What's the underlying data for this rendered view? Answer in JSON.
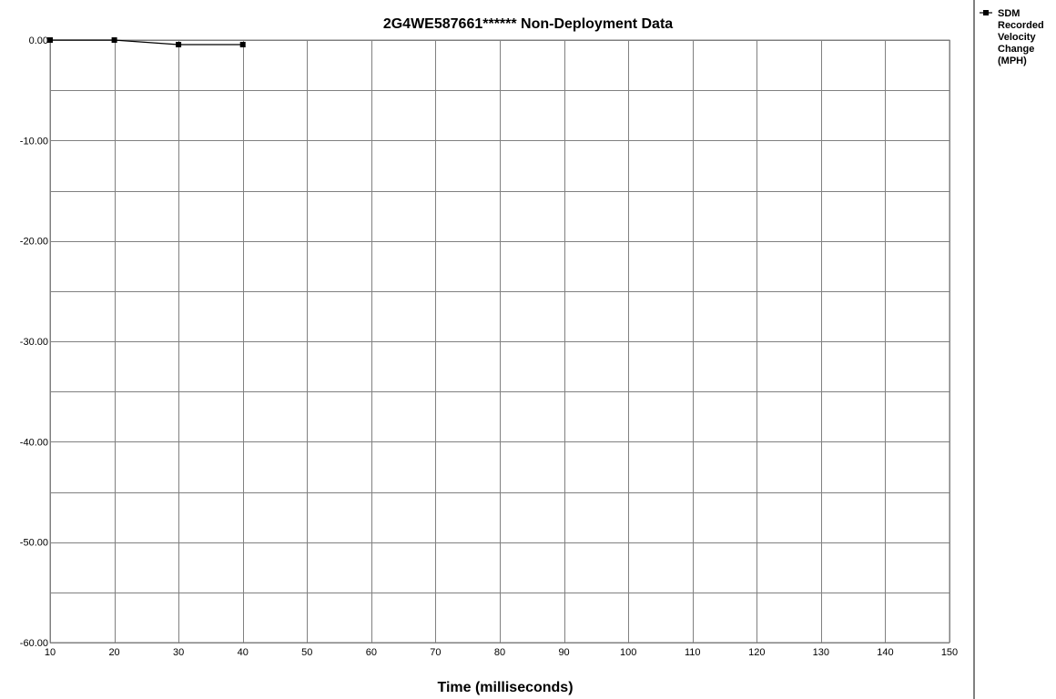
{
  "chart_data": {
    "type": "line",
    "title": "2G4WE587661******  Non-Deployment Data",
    "xlabel": "Time (milliseconds)",
    "ylabel": "",
    "x": [
      10,
      20,
      30,
      40
    ],
    "series": [
      {
        "name": "SDM Recorded Velocity Change (MPH)",
        "legend_lines": [
          "SDM",
          "Recorded",
          "Velocity",
          "Change",
          "(MPH)"
        ],
        "values": [
          0.0,
          0.0,
          -0.45,
          -0.45
        ],
        "color": "#000000",
        "marker": "square"
      }
    ],
    "xlim": [
      10,
      150
    ],
    "ylim": [
      -60,
      0
    ],
    "x_ticks": [
      10,
      20,
      30,
      40,
      50,
      60,
      70,
      80,
      90,
      100,
      110,
      120,
      130,
      140,
      150
    ],
    "y_ticks": [
      0,
      -10,
      -20,
      -30,
      -40,
      -50,
      -60
    ],
    "y_tick_labels": [
      "0.00",
      "-10.00",
      "-20.00",
      "-30.00",
      "-40.00",
      "-50.00",
      "-60.00"
    ],
    "y_minor_gridlines": [
      -5,
      -15,
      -25,
      -35,
      -45,
      -55
    ],
    "grid": true,
    "legend_position": "right",
    "plot_background": "#ffffff",
    "grid_color": "#808080"
  }
}
